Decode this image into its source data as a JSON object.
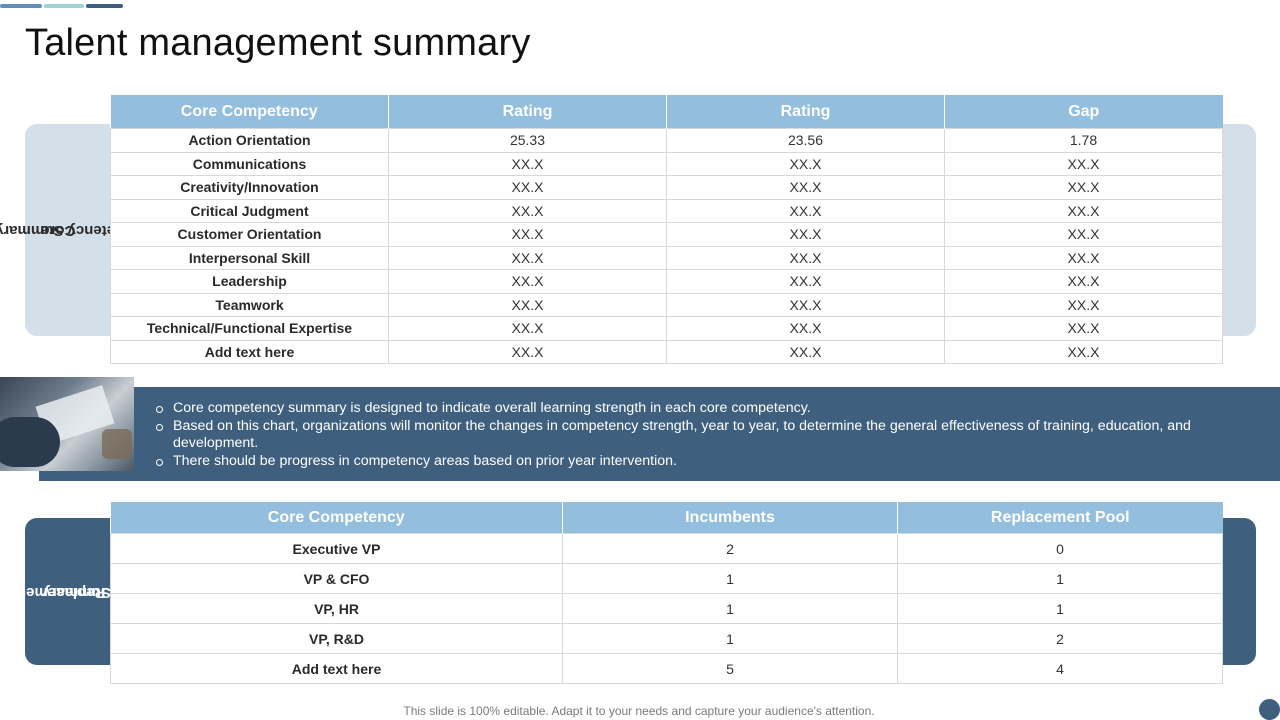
{
  "title": "Talent management summary",
  "colors": {
    "header_blue": "#94bedd",
    "dark_blue": "#3e5f7e",
    "light_panel": "#d3dfe9"
  },
  "competency_table": {
    "side_label_line1": "Core",
    "side_label_line2": "Competency Summary",
    "headers": [
      "Core Competency",
      "Rating",
      "Rating",
      "Gap"
    ],
    "rows": [
      [
        "Action  Orientation",
        "25.33",
        "23.56",
        "1.78"
      ],
      [
        "Communications",
        "XX.X",
        "XX.X",
        "XX.X"
      ],
      [
        "Creativity/Innovation",
        "XX.X",
        "XX.X",
        "XX.X"
      ],
      [
        "Critical Judgment",
        "XX.X",
        "XX.X",
        "XX.X"
      ],
      [
        "Customer Orientation",
        "XX.X",
        "XX.X",
        "XX.X"
      ],
      [
        "Interpersonal Skill",
        "XX.X",
        "XX.X",
        "XX.X"
      ],
      [
        "Leadership",
        "XX.X",
        "XX.X",
        "XX.X"
      ],
      [
        "Teamwork",
        "XX.X",
        "XX.X",
        "XX.X"
      ],
      [
        "Technical/Functional Expertise",
        "XX.X",
        "XX.X",
        "XX.X"
      ],
      [
        "Add  text here",
        "XX.X",
        "XX.X",
        "XX.X"
      ]
    ]
  },
  "banner": {
    "bullets": [
      "Core competency summary is designed to indicate overall learning strength in each core competency.",
      "Based on this chart, organizations will monitor the changes in competency strength, year to year, to determine the general effectiveness of training, education, and development.",
      "There should be progress in competency areas based on prior year intervention."
    ]
  },
  "replacement_table": {
    "side_label_line1": "Replacement",
    "side_label_line2": "Summary",
    "headers": [
      "Core Competency",
      "Incumbents",
      "Replacement Pool"
    ],
    "rows": [
      [
        "Executive VP",
        "2",
        "0"
      ],
      [
        "VP & CFO",
        "1",
        "1"
      ],
      [
        "VP, HR",
        "1",
        "1"
      ],
      [
        "VP, R&D",
        "1",
        "2"
      ],
      [
        "Add  text here",
        "5",
        "4"
      ]
    ]
  },
  "footer": "This slide is 100% editable. Adapt it to your needs and capture your audience's attention."
}
